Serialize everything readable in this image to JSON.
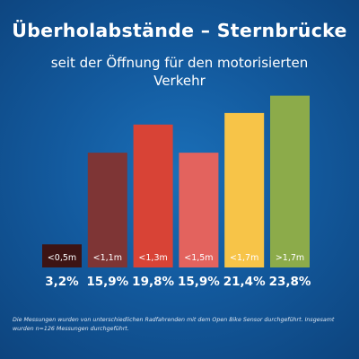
{
  "header": {
    "title": "Überholabstände – Sternbrücke",
    "subtitle_line1": "seit der Öffnung für den motorisierten",
    "subtitle_line2": "Verkehr"
  },
  "chart_data": {
    "type": "bar",
    "title": "Überholabstände – Sternbrücke",
    "subtitle": "seit der Öffnung für den motorisierten Verkehr",
    "categories": [
      "<0,5m",
      "<1,1m",
      "<1,3m",
      "<1,5m",
      "<1,7m",
      ">1,7m"
    ],
    "values": [
      3.2,
      15.9,
      19.8,
      15.9,
      21.4,
      23.8
    ],
    "value_labels": [
      "3,2%",
      "15,9%",
      "19,8%",
      "15,9%",
      "21,4%",
      "23,8%"
    ],
    "colors": [
      "#3d1414",
      "#7e3535",
      "#d84336",
      "#e3635e",
      "#f7c448",
      "#8cab4a"
    ],
    "ylim": [
      0,
      24
    ],
    "xlabel": "",
    "ylabel": "",
    "grid": false,
    "legend": "none"
  },
  "footnote": "Die Messungen wurden von unterschiedlichen Radfahrenden mit dem Open Bike Sensor durchgeführt. Insgesamt wurden n=126 Messungen durchgeführt."
}
